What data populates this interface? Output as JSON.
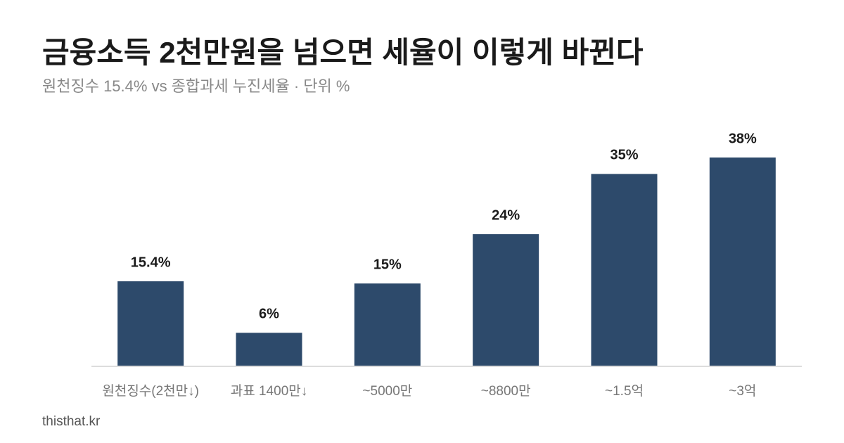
{
  "chart_data": {
    "type": "bar",
    "title": "금융소득 2천만원을 넘으면 세율이 이렇게 바뀐다",
    "subtitle": "원천징수 15.4% vs 종합과세 누진세율 · 단위 %",
    "categories": [
      "원천징수(2천만↓)",
      "과표 1400만↓",
      "~5000만",
      "~8800만",
      "~1.5억",
      "~3억"
    ],
    "values": [
      15.4,
      6,
      15,
      24,
      35,
      38
    ],
    "value_labels": [
      "15.4%",
      "6%",
      "15%",
      "24%",
      "35%",
      "38%"
    ],
    "color": "#2d4a6b",
    "source": "thisthat.kr"
  }
}
